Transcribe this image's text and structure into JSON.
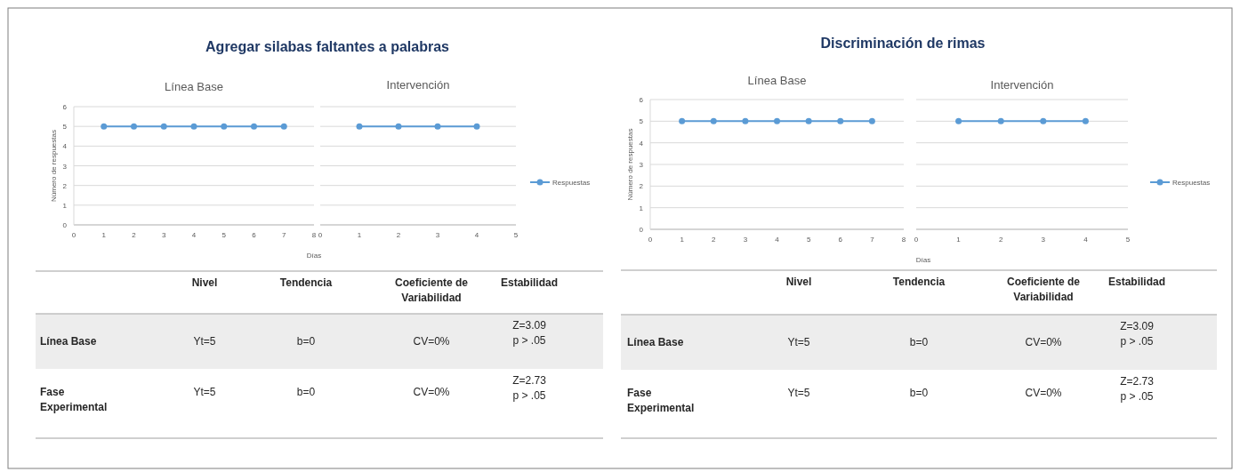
{
  "chart_data": [
    {
      "type": "line",
      "title": "Agregar silabas faltantes a palabras",
      "subtitle": "Línea Base",
      "ylabel": "Número de respuestas",
      "xlabel": "Días",
      "xlim": [
        0,
        8
      ],
      "xticks": [
        0,
        1,
        2,
        3,
        4,
        5,
        6,
        7,
        8
      ],
      "ylim": [
        0,
        6
      ],
      "yticks": [
        0,
        1,
        2,
        3,
        4,
        5,
        6
      ],
      "grid": "y",
      "marker": "circle",
      "series": [
        {
          "color": "#5b9bd5",
          "x": [
            1,
            2,
            3,
            4,
            5,
            6,
            7
          ],
          "values": [
            5,
            5,
            5,
            5,
            5,
            5,
            5
          ]
        }
      ]
    },
    {
      "type": "line",
      "subtitle": "Intervención",
      "xlim": [
        0,
        5
      ],
      "xticks": [
        0,
        1,
        2,
        3,
        4,
        5
      ],
      "ylim": [
        0,
        6
      ],
      "yticks": [
        0,
        1,
        2,
        3,
        4,
        5,
        6
      ],
      "tick_labels": "x",
      "grid": "y",
      "marker": "circle",
      "legend": "right",
      "series": [
        {
          "name": "Respuestas",
          "color": "#5b9bd5",
          "x": [
            1,
            2,
            3,
            4
          ],
          "values": [
            5,
            5,
            5,
            5
          ]
        }
      ]
    },
    {
      "type": "other",
      "annotations": [
        "Nivel",
        "Tendencia",
        "Coeficiente de\nVariabilidad",
        "Estabilidad",
        "Línea Base",
        "Yt=5",
        "b=0",
        "CV=0%",
        "Z=3.09\np > .05",
        "Fase\nExperimental",
        "Yt=5",
        "b=0",
        "CV=0%",
        "Z=2.73\np > .05"
      ]
    },
    {
      "type": "line",
      "title": "Discriminación de rimas",
      "subtitle": "Línea Base",
      "ylabel": "Número de respuestas",
      "xlabel": "Días",
      "xlim": [
        0,
        8
      ],
      "xticks": [
        0,
        1,
        2,
        3,
        4,
        5,
        6,
        7,
        8
      ],
      "ylim": [
        0,
        6
      ],
      "yticks": [
        0,
        1,
        2,
        3,
        4,
        5,
        6
      ],
      "grid": "y",
      "marker": "circle",
      "series": [
        {
          "color": "#5b9bd5",
          "x": [
            1,
            2,
            3,
            4,
            5,
            6,
            7
          ],
          "values": [
            5,
            5,
            5,
            5,
            5,
            5,
            5
          ]
        }
      ]
    },
    {
      "type": "line",
      "subtitle": "Intervención",
      "xlim": [
        0,
        5
      ],
      "xticks": [
        0,
        1,
        2,
        3,
        4,
        5
      ],
      "ylim": [
        0,
        6
      ],
      "yticks": [
        0,
        1,
        2,
        3,
        4,
        5,
        6
      ],
      "tick_labels": "x",
      "grid": "y",
      "marker": "circle",
      "legend": "right",
      "series": [
        {
          "name": "Respuestas",
          "color": "#5b9bd5",
          "x": [
            1,
            2,
            3,
            4
          ],
          "values": [
            5,
            5,
            5,
            5
          ]
        }
      ]
    },
    {
      "type": "other",
      "annotations": [
        "Nivel",
        "Tendencia",
        "Coeficiente de\nVariabilidad",
        "Estabilidad",
        "Línea Base",
        "Yt=5",
        "b=0",
        "CV=0%",
        "Z=3.09\np > .05",
        "Fase\nExperimental",
        "Yt=5",
        "b=0",
        "CV=0%",
        "Z=2.73\np > .05"
      ]
    }
  ]
}
